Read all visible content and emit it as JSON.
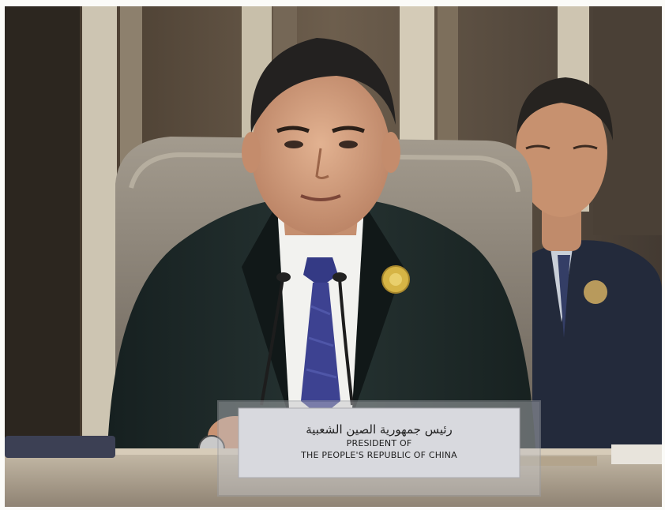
{
  "photo": {
    "subject": "speaker seated at a summit table behind a name plaque",
    "palette": {
      "background_wall": "#6b5e4f",
      "wall_stripe_light": "#cfc6b3",
      "chair": "#8a8275",
      "suit": "#1f2a2a",
      "shirt": "#f3f3f1",
      "tie": "#3b3f86",
      "skin": "#cf9f7e",
      "hair": "#242222",
      "badge": "#d8b545",
      "table": "#b8ab98",
      "plaque": "#d9dade",
      "second_person_suit": "#252b3d"
    }
  },
  "nameplate": {
    "arabic": "رئيس جمهورية الصين الشعبية",
    "line1": "PRESIDENT OF",
    "line2": "THE PEOPLE'S REPUBLIC OF CHINA"
  }
}
